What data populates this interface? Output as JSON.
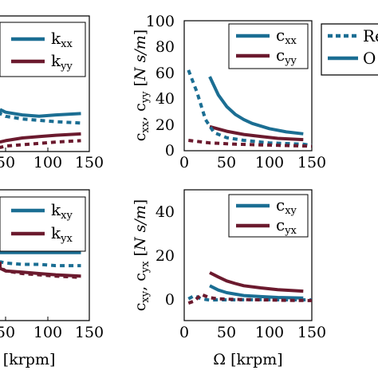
{
  "colors": {
    "teal": "#1b6e93",
    "maroon": "#6b1a2e"
  },
  "chart_data": [
    {
      "type": "line",
      "panel": "top-left",
      "x_ticks": [
        "50",
        "100",
        "150"
      ],
      "xlim": [
        0,
        150
      ],
      "legend": [
        "k_xx",
        "k_yy"
      ],
      "series": [
        {
          "name": "k_xx",
          "color": "teal",
          "style": "solid",
          "x": [
            0,
            30,
            50,
            70,
            90,
            110,
            140
          ],
          "y": [
            0.31,
            0.31,
            0.29,
            0.27,
            0.26,
            0.27,
            0.28
          ]
        },
        {
          "name": "k_yy",
          "color": "maroon",
          "style": "solid",
          "x": [
            0,
            30,
            50,
            70,
            90,
            110,
            140
          ],
          "y": [
            0.06,
            0.07,
            0.08,
            0.1,
            0.11,
            0.12,
            0.13
          ]
        },
        {
          "color": "teal",
          "style": "dashed",
          "x": [
            0,
            30,
            50,
            70,
            90,
            110,
            140
          ],
          "y": [
            0.3,
            0.28,
            0.26,
            0.24,
            0.23,
            0.22,
            0.21
          ]
        },
        {
          "color": "maroon",
          "style": "dashed",
          "x": [
            0,
            30,
            50,
            70,
            90,
            110,
            140
          ],
          "y": [
            0.02,
            0.03,
            0.04,
            0.05,
            0.06,
            0.07,
            0.08
          ]
        }
      ]
    },
    {
      "type": "line",
      "panel": "top-right",
      "xlim": [
        0,
        150
      ],
      "ylim": [
        0,
        100
      ],
      "x_ticks": [
        "0",
        "50",
        "100",
        "150"
      ],
      "y_ticks": [
        "0",
        "20",
        "40",
        "60",
        "80",
        "100"
      ],
      "ylabel": "c_xx, c_yy [N s/m]",
      "legend": [
        "c_xx",
        "c_yy"
      ],
      "series": [
        {
          "name": "c_xx",
          "color": "teal",
          "style": "solid",
          "x": [
            30,
            40,
            50,
            60,
            70,
            80,
            100,
            120,
            140
          ],
          "y": [
            57,
            43,
            34,
            28,
            24,
            21,
            17,
            14.5,
            13
          ]
        },
        {
          "name": "c_yy",
          "color": "maroon",
          "style": "solid",
          "x": [
            30,
            50,
            70,
            90,
            110,
            140
          ],
          "y": [
            18.5,
            15,
            12.5,
            11,
            9.5,
            8.5
          ]
        },
        {
          "color": "teal",
          "style": "dashed",
          "x": [
            5,
            15,
            25,
            35,
            50,
            70,
            100,
            140,
            150
          ],
          "y": [
            62,
            45,
            24,
            14,
            10,
            8,
            6,
            5,
            4
          ]
        },
        {
          "color": "maroon",
          "style": "dashed",
          "x": [
            5,
            30,
            60,
            90,
            120,
            150
          ],
          "y": [
            8,
            6,
            5,
            4.5,
            4,
            3.5
          ]
        }
      ]
    },
    {
      "type": "line",
      "panel": "bottom-left",
      "x_ticks": [
        "50",
        "100",
        "150"
      ],
      "xlim": [
        0,
        150
      ],
      "xlabel": "Ω [krpm]",
      "legend": [
        "k_xy",
        "k_yx"
      ],
      "series": [
        {
          "name": "k_xy",
          "color": "teal",
          "style": "solid",
          "x": [
            0,
            30,
            50,
            70,
            90,
            110,
            140
          ],
          "y": [
            0.52,
            0.52,
            0.52,
            0.52,
            0.52,
            0.52,
            0.52
          ]
        },
        {
          "name": "k_yx",
          "color": "maroon",
          "style": "solid",
          "x": [
            0,
            30,
            50,
            70,
            90,
            110,
            140
          ],
          "y": [
            0.42,
            0.4,
            0.38,
            0.37,
            0.36,
            0.35,
            0.34
          ]
        },
        {
          "color": "teal",
          "style": "dashed",
          "x": [
            0,
            30,
            50,
            70,
            90,
            110,
            140
          ],
          "y": [
            0.46,
            0.45,
            0.44,
            0.43,
            0.43,
            0.42,
            0.42
          ]
        },
        {
          "color": "maroon",
          "style": "dashed",
          "x": [
            0,
            30,
            50,
            70,
            90,
            110,
            140
          ],
          "y": [
            0.45,
            0.41,
            0.38,
            0.36,
            0.35,
            0.34,
            0.33
          ]
        }
      ]
    },
    {
      "type": "line",
      "panel": "bottom-right",
      "xlim": [
        0,
        150
      ],
      "ylim": [
        -10,
        50
      ],
      "x_ticks": [
        "0",
        "50",
        "100",
        "150"
      ],
      "y_ticks": [
        "0",
        "20",
        "40"
      ],
      "xlabel": "Ω [krpm]",
      "ylabel": "c_xy, c_yx [N s/m]",
      "legend": [
        "c_xy",
        "c_yx"
      ],
      "series": [
        {
          "name": "c_xy",
          "color": "teal",
          "style": "solid",
          "x": [
            30,
            40,
            50,
            70,
            90,
            110,
            140
          ],
          "y": [
            6,
            4,
            2.8,
            1.5,
            1,
            0.6,
            0.3
          ]
        },
        {
          "name": "c_yx",
          "color": "maroon",
          "style": "solid",
          "x": [
            30,
            40,
            50,
            60,
            70,
            90,
            110,
            140
          ],
          "y": [
            12,
            10,
            8.2,
            7,
            6,
            5,
            4.2,
            3.5
          ]
        },
        {
          "color": "teal",
          "style": "dashed",
          "x": [
            5,
            12,
            20,
            30,
            40,
            60,
            90,
            120,
            150
          ],
          "y": [
            0,
            1.5,
            0,
            -0.6,
            -0.5,
            -0.5,
            -0.4,
            -0.5,
            -0.5
          ]
        },
        {
          "color": "maroon",
          "style": "dashed",
          "x": [
            5,
            12,
            20,
            30,
            40,
            60,
            90,
            120,
            150
          ],
          "y": [
            -2,
            -1,
            2,
            0.5,
            0,
            -0.3,
            -0.5,
            -0.7,
            -0.8
          ]
        }
      ]
    }
  ],
  "legend_panel": {
    "entries": [
      {
        "label": "Re",
        "color": "teal",
        "style": "dashed"
      },
      {
        "label": "O",
        "color": "teal",
        "style": "solid"
      }
    ]
  }
}
